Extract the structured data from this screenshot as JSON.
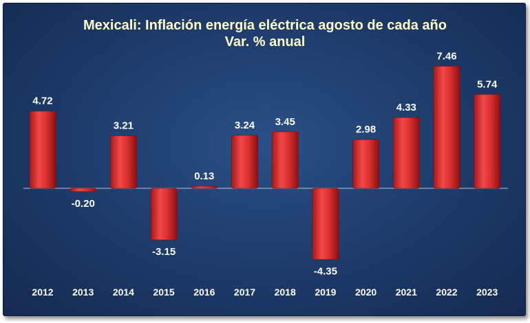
{
  "chart_data": {
    "type": "bar",
    "title": "Mexicali: Inflación energía eléctrica agosto de cada año",
    "subtitle": "Var. % anual",
    "xlabel": "",
    "ylabel": "",
    "categories": [
      "2012",
      "2013",
      "2014",
      "2015",
      "2016",
      "2017",
      "2018",
      "2019",
      "2020",
      "2021",
      "2022",
      "2023"
    ],
    "values": [
      4.72,
      -0.2,
      3.21,
      -3.15,
      0.13,
      3.24,
      3.45,
      -4.35,
      2.98,
      4.33,
      7.46,
      5.74
    ],
    "value_labels": [
      "4.72",
      "-0.20",
      "3.21",
      "-3.15",
      "0.13",
      "3.24",
      "3.45",
      "-4.35",
      "2.98",
      "4.33",
      "7.46",
      "5.74"
    ],
    "ylim": [
      -4.35,
      7.46
    ],
    "grid": false,
    "legend": "none",
    "colors": {
      "bar": "#e03a3a",
      "bar_dark": "#9c1414",
      "background": "#1f3e6e",
      "title": "#ffffcc",
      "text": "#ffffff"
    }
  }
}
